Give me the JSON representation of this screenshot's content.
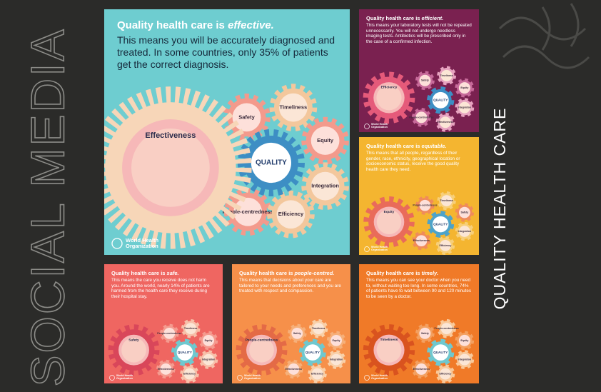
{
  "side_title": "SOCIAL MEDIA",
  "side_subtitle": "QUALITY HEALTH CARE",
  "panels": [
    {
      "title": "Quality health care is",
      "emphasis": "effective.",
      "body": "This means you will be accurately diagnosed and treated. In some countries, only 35% of patients get the correct diagnosis.",
      "main_gear": "Effectiveness",
      "center_gear": "QUALITY",
      "gears": [
        "Safety",
        "Timeliness",
        "Equity",
        "Integration",
        "People-centredness",
        "Efficiency"
      ],
      "logo": "World Health Organization"
    },
    {
      "title": "Quality health care is",
      "emphasis": "efficient.",
      "body": "This means your laboratory tests will not be repeated unnecessarily. You will not undergo needless imaging tests. Antibiotics will be prescribed only in the case of a confirmed infection.",
      "main_gear": "Efficiency",
      "center_gear": "QUALITY",
      "gears": [
        "Safety",
        "Timeliness",
        "Equity",
        "Integration",
        "People-centredness",
        "Effectiveness"
      ],
      "logo": "World Health Organization"
    },
    {
      "title": "Quality health care is",
      "emphasis": "equitable.",
      "body": "This means that all people, regardless of their gender, race, ethnicity, geographical location or socioeconomic status, receive the good quality health care they need.",
      "main_gear": "Equity",
      "center_gear": "QUALITY",
      "gears": [
        "People-centredness",
        "Timeliness",
        "Safety",
        "Integration",
        "Effectiveness",
        "Efficiency"
      ],
      "logo": "World Health Organization"
    },
    {
      "title": "Quality health care is",
      "emphasis": "safe.",
      "body": "This means the care you receive does not harm you. Around the world, nearly 14% of patients are harmed from the health care they receive during their hospital stay.",
      "main_gear": "Safety",
      "center_gear": "QUALITY",
      "gears": [
        "People-centredness",
        "Timeliness",
        "Equity",
        "Integration",
        "Effectiveness",
        "Efficiency"
      ],
      "logo": "World Health Organization"
    },
    {
      "title": "Quality health care is",
      "emphasis": "people-centred.",
      "body": "This means that decisions about your care are tailored to your needs and preferences and you are treated with respect and compassion.",
      "main_gear": "People-centredness",
      "center_gear": "QUALITY",
      "gears": [
        "Safety",
        "Timeliness",
        "Equity",
        "Integration",
        "Effectiveness",
        "Efficiency"
      ],
      "logo": "World Health Organization"
    },
    {
      "title": "Quality health care is",
      "emphasis": "timely.",
      "body": "This means you can see your doctor when you need to, without waiting too long. In some countries, 74% of patients have to wait between 90 and 120 minutes to be seen by a doctor.",
      "main_gear": "Timeliness",
      "center_gear": "QUALITY",
      "gears": [
        "Safety",
        "People-centredness",
        "Equity",
        "Integration",
        "Effectiveness",
        "Efficiency"
      ],
      "logo": "World Health Organization"
    }
  ]
}
